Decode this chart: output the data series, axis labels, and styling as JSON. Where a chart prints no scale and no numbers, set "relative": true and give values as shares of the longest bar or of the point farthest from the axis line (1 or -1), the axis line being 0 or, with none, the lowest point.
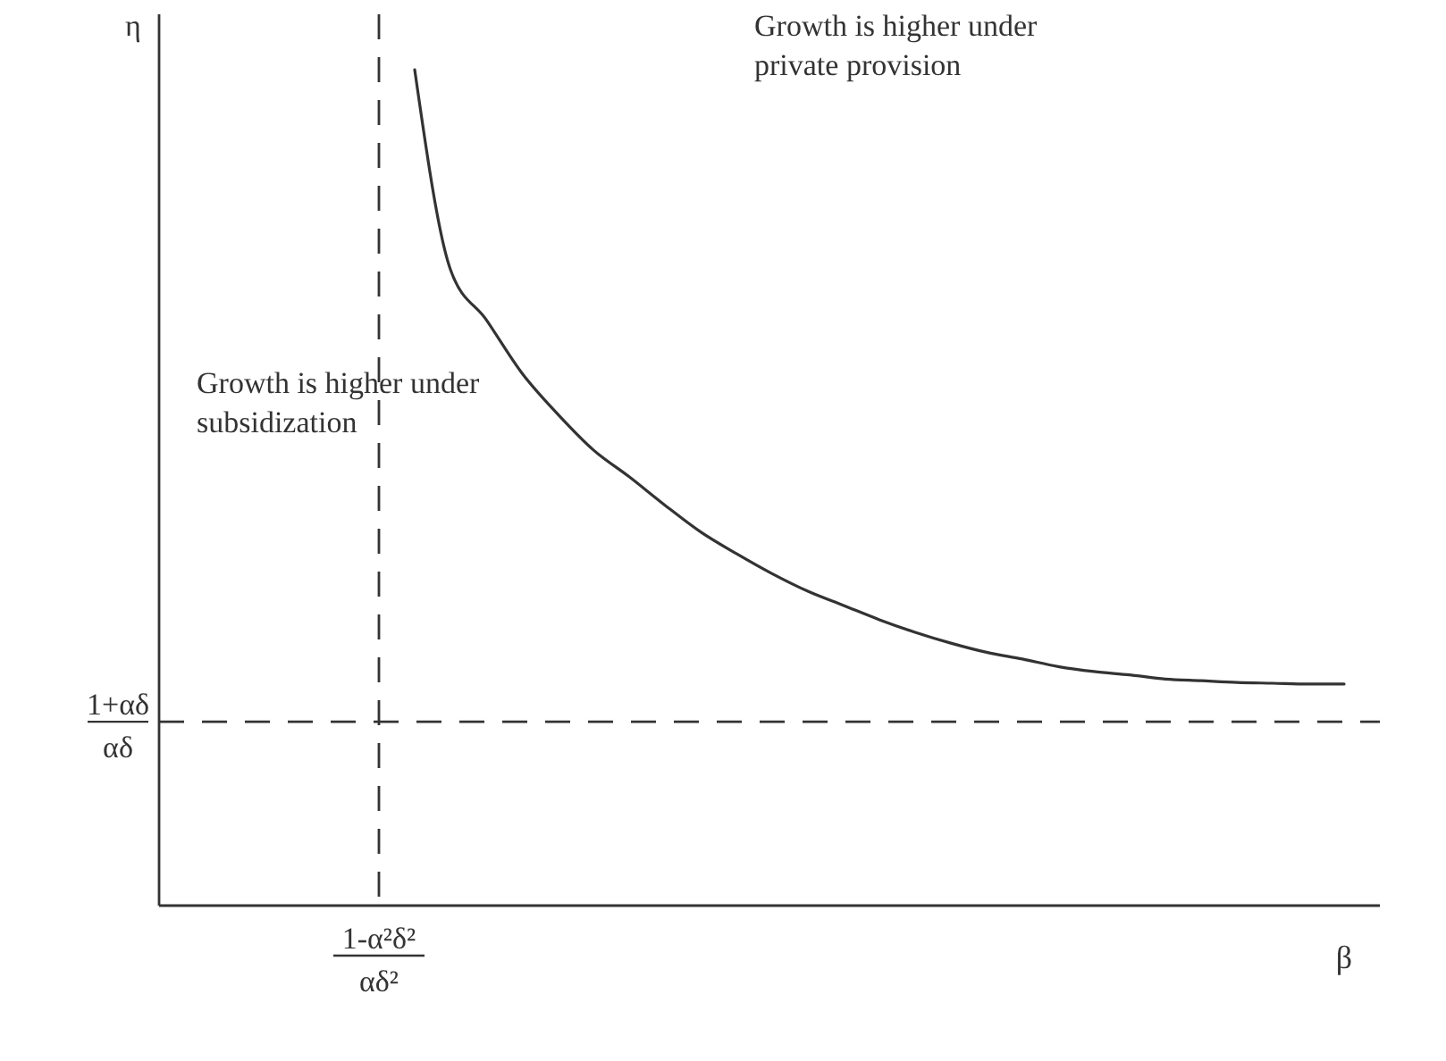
{
  "chart_data": {
    "type": "line",
    "relative": true,
    "xlabel": "β",
    "categories": [
      null,
      null,
      null,
      null,
      null,
      null,
      null,
      null,
      null,
      null,
      null,
      null,
      null,
      null,
      null,
      null,
      null,
      null,
      null,
      null,
      null,
      null,
      null,
      null,
      null,
      null,
      null,
      null
    ],
    "series": [
      {
        "color": "#333333",
        "values": [
          null,
          1,
          0.761,
          0.701,
          0.637,
          0.588,
          0.545,
          0.513,
          0.479,
          0.447,
          0.421,
          0.397,
          0.376,
          0.359,
          0.342,
          0.327,
          0.314,
          0.303,
          0.295,
          0.286,
          0.28,
          0.276,
          0.271,
          0.269,
          0.267,
          0.266,
          0.265,
          0.265
        ]
      }
    ],
    "ref_lines": [
      {
        "axis": "x",
        "label": "1-α²δ²\nαδ²",
        "line_style": "dashed",
        "color": "#333333"
      },
      {
        "axis": "y",
        "value": 0.22,
        "label": "1+αδ\nαδ",
        "line_style": "dashed",
        "color": "#333333"
      }
    ],
    "annotations": [
      "Growth is higher under\nprivate provision",
      "Growth is higher under\nsubsidization",
      "η"
    ]
  }
}
